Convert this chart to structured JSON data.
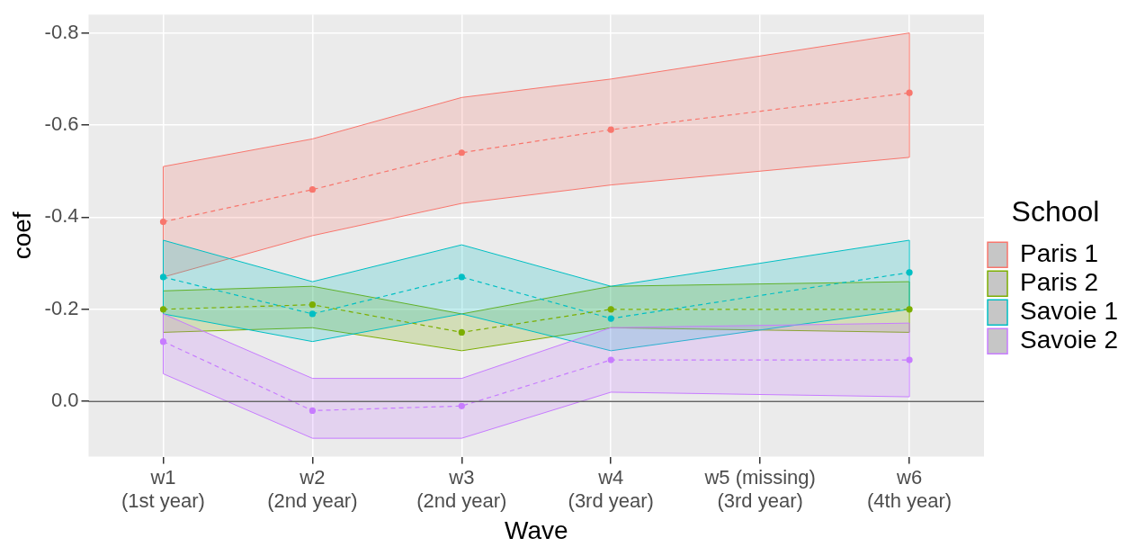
{
  "chart_data": {
    "type": "line",
    "categories": [
      "w1\n(1st year)",
      "w2\n(2nd year)",
      "w3\n(2nd year)",
      "w4\n(3rd year)",
      "w5 (missing)\n(3rd year)",
      "w6\n(4th year)"
    ],
    "series": [
      {
        "name": "Paris 1",
        "color": "#f8766d",
        "values": [
          -0.39,
          -0.46,
          -0.54,
          -0.59,
          null,
          -0.67
        ],
        "lower": [
          -0.51,
          -0.57,
          -0.66,
          -0.7,
          null,
          -0.8
        ],
        "upper": [
          -0.27,
          -0.36,
          -0.43,
          -0.47,
          null,
          -0.53
        ]
      },
      {
        "name": "Paris 2",
        "color": "#7cae00",
        "values": [
          -0.2,
          -0.21,
          -0.15,
          -0.2,
          null,
          -0.2
        ],
        "lower": [
          -0.24,
          -0.25,
          -0.19,
          -0.25,
          null,
          -0.26
        ],
        "upper": [
          -0.15,
          -0.16,
          -0.11,
          -0.16,
          null,
          -0.15
        ]
      },
      {
        "name": "Savoie 1",
        "color": "#00bfc4",
        "values": [
          -0.27,
          -0.19,
          -0.27,
          -0.18,
          null,
          -0.28
        ],
        "lower": [
          -0.35,
          -0.26,
          -0.34,
          -0.25,
          null,
          -0.35
        ],
        "upper": [
          -0.19,
          -0.13,
          -0.19,
          -0.11,
          null,
          -0.2
        ]
      },
      {
        "name": "Savoie 2",
        "color": "#c77cff",
        "values": [
          -0.13,
          0.02,
          0.01,
          -0.09,
          null,
          -0.09
        ],
        "lower": [
          -0.19,
          -0.05,
          -0.05,
          -0.16,
          null,
          -0.17
        ],
        "upper": [
          -0.06,
          0.08,
          0.08,
          -0.02,
          null,
          -0.01
        ]
      }
    ],
    "xlabel": "Wave",
    "ylabel": "coef",
    "legend_title": "School",
    "legend": "right",
    "ylim": [
      0.12,
      -0.84
    ],
    "yticks": [
      -0.8,
      -0.6,
      -0.4,
      -0.2,
      {
        "value": 0,
        "label": "0.0"
      }
    ],
    "ref_lines": [
      {
        "axis": "y",
        "value": 0,
        "color": "#666666"
      }
    ],
    "grid": true,
    "marker": "circle",
    "line_style": "dashed"
  }
}
